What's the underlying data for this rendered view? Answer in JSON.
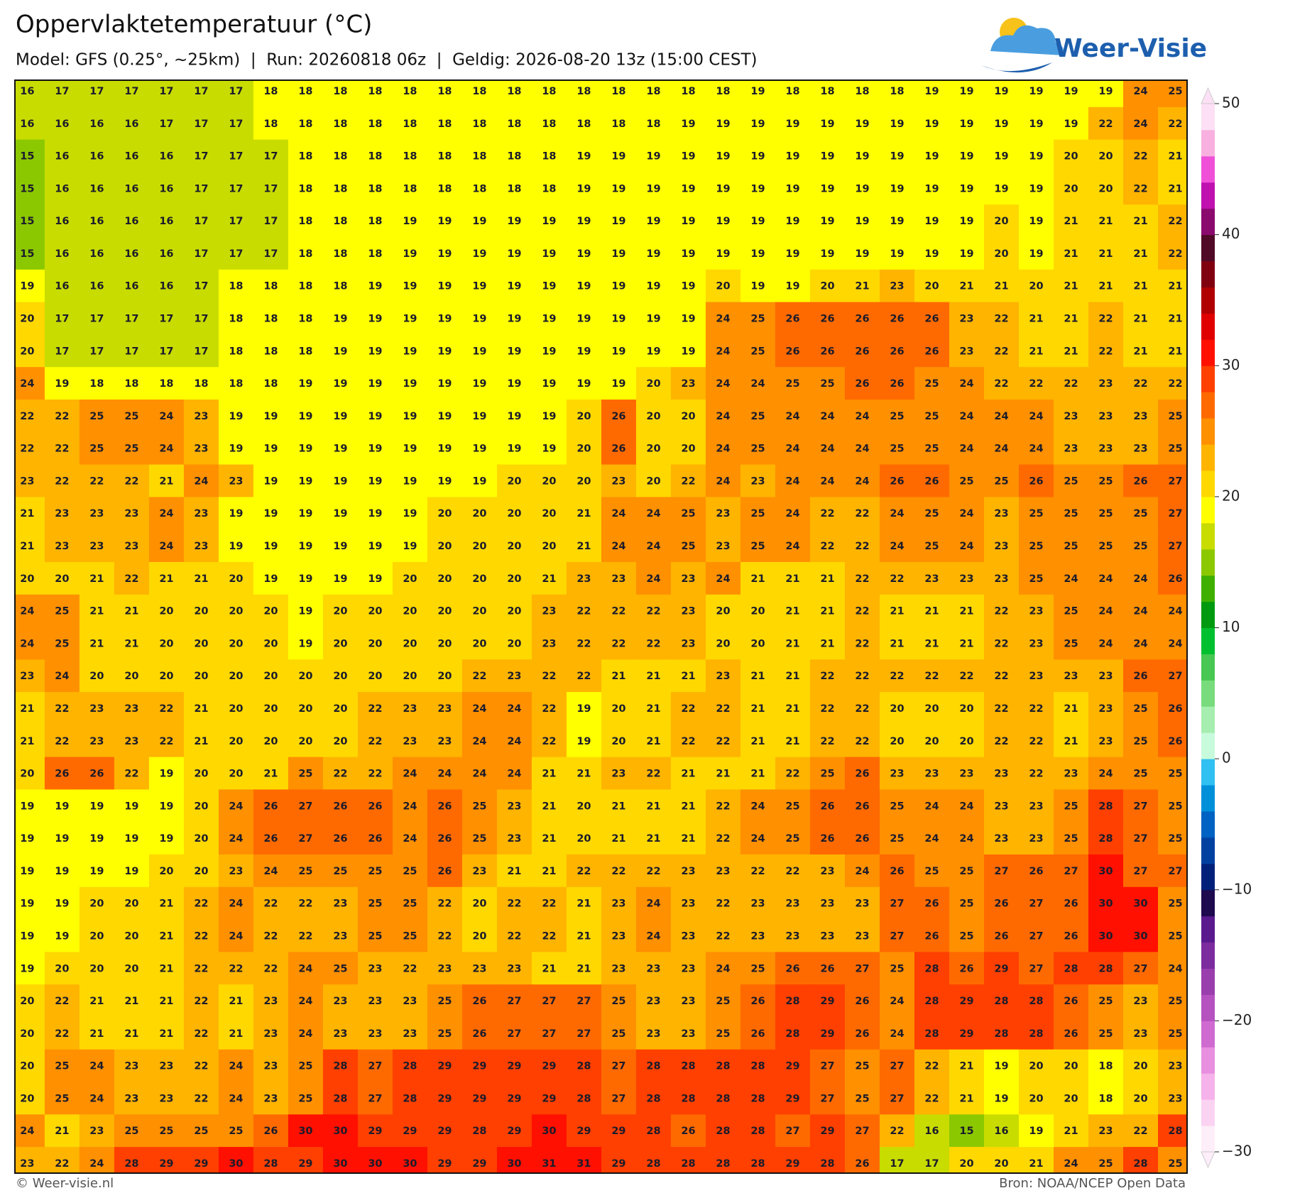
{
  "header": {
    "title": "Oppervlaktetemperatuur (°C)",
    "subtitle": "Model: GFS (0.25°, ~25km)  |  Run: 20260818 06z  |  Geldig: 2026-08-20 13z (15:00 CEST)",
    "logo": "Weer-Visie"
  },
  "grid": {
    "rows": [
      [
        16,
        17,
        17,
        17,
        17,
        17,
        17,
        18,
        18,
        18,
        18,
        18,
        18,
        18,
        18,
        18,
        18,
        18,
        18,
        18,
        18,
        19,
        18,
        18,
        18,
        18,
        19,
        19,
        19,
        19,
        19,
        19,
        24,
        25
      ],
      [
        16,
        16,
        16,
        16,
        17,
        17,
        17,
        18,
        18,
        18,
        18,
        18,
        18,
        18,
        18,
        18,
        18,
        18,
        18,
        19,
        19,
        19,
        19,
        19,
        19,
        19,
        19,
        19,
        19,
        19,
        19,
        22,
        24,
        22
      ],
      [
        15,
        16,
        16,
        16,
        16,
        17,
        17,
        17,
        18,
        18,
        18,
        18,
        18,
        18,
        18,
        18,
        19,
        19,
        19,
        19,
        19,
        19,
        19,
        19,
        19,
        19,
        19,
        19,
        19,
        19,
        20,
        20,
        22,
        21
      ],
      [
        15,
        16,
        16,
        16,
        16,
        17,
        17,
        17,
        18,
        18,
        18,
        18,
        18,
        18,
        18,
        18,
        19,
        19,
        19,
        19,
        19,
        19,
        19,
        19,
        19,
        19,
        19,
        19,
        19,
        19,
        20,
        20,
        22,
        21
      ],
      [
        15,
        16,
        16,
        16,
        16,
        17,
        17,
        17,
        18,
        18,
        18,
        19,
        19,
        19,
        19,
        19,
        19,
        19,
        19,
        19,
        19,
        19,
        19,
        19,
        19,
        19,
        19,
        19,
        20,
        19,
        21,
        21,
        21,
        22
      ],
      [
        15,
        16,
        16,
        16,
        16,
        17,
        17,
        17,
        18,
        18,
        18,
        19,
        19,
        19,
        19,
        19,
        19,
        19,
        19,
        19,
        19,
        19,
        19,
        19,
        19,
        19,
        19,
        19,
        20,
        19,
        21,
        21,
        21,
        22
      ],
      [
        19,
        16,
        16,
        16,
        16,
        17,
        18,
        18,
        18,
        18,
        19,
        19,
        19,
        19,
        19,
        19,
        19,
        19,
        19,
        19,
        20,
        19,
        19,
        20,
        21,
        23,
        20,
        21,
        21,
        20,
        21,
        21,
        21,
        21
      ],
      [
        20,
        17,
        17,
        17,
        17,
        17,
        18,
        18,
        18,
        19,
        19,
        19,
        19,
        19,
        19,
        19,
        19,
        19,
        19,
        19,
        24,
        25,
        26,
        26,
        26,
        26,
        26,
        23,
        22,
        21,
        21,
        22,
        21,
        21
      ],
      [
        20,
        17,
        17,
        17,
        17,
        17,
        18,
        18,
        18,
        19,
        19,
        19,
        19,
        19,
        19,
        19,
        19,
        19,
        19,
        19,
        24,
        25,
        26,
        26,
        26,
        26,
        26,
        23,
        22,
        21,
        21,
        22,
        21,
        21
      ],
      [
        24,
        19,
        18,
        18,
        18,
        18,
        18,
        18,
        19,
        19,
        19,
        19,
        19,
        19,
        19,
        19,
        19,
        19,
        20,
        23,
        24,
        24,
        25,
        25,
        26,
        26,
        25,
        24,
        22,
        22,
        22,
        23,
        22,
        22
      ],
      [
        22,
        22,
        25,
        25,
        24,
        23,
        19,
        19,
        19,
        19,
        19,
        19,
        19,
        19,
        19,
        19,
        20,
        26,
        20,
        20,
        24,
        25,
        24,
        24,
        24,
        25,
        25,
        24,
        24,
        24,
        23,
        23,
        23,
        25
      ],
      [
        22,
        22,
        25,
        25,
        24,
        23,
        19,
        19,
        19,
        19,
        19,
        19,
        19,
        19,
        19,
        19,
        20,
        26,
        20,
        20,
        24,
        25,
        24,
        24,
        24,
        25,
        25,
        24,
        24,
        24,
        23,
        23,
        23,
        25
      ],
      [
        23,
        22,
        22,
        22,
        21,
        24,
        23,
        19,
        19,
        19,
        19,
        19,
        19,
        19,
        20,
        20,
        20,
        23,
        20,
        22,
        24,
        23,
        24,
        24,
        24,
        26,
        26,
        25,
        25,
        26,
        25,
        25,
        26,
        27
      ],
      [
        21,
        23,
        23,
        23,
        24,
        23,
        19,
        19,
        19,
        19,
        19,
        19,
        20,
        20,
        20,
        20,
        21,
        24,
        24,
        25,
        23,
        25,
        24,
        22,
        22,
        24,
        25,
        24,
        23,
        25,
        25,
        25,
        25,
        27
      ],
      [
        21,
        23,
        23,
        23,
        24,
        23,
        19,
        19,
        19,
        19,
        19,
        19,
        20,
        20,
        20,
        20,
        21,
        24,
        24,
        25,
        23,
        25,
        24,
        22,
        22,
        24,
        25,
        24,
        23,
        25,
        25,
        25,
        25,
        27
      ],
      [
        20,
        20,
        21,
        22,
        21,
        21,
        20,
        19,
        19,
        19,
        19,
        20,
        20,
        20,
        20,
        21,
        23,
        23,
        24,
        23,
        24,
        21,
        21,
        21,
        22,
        22,
        23,
        23,
        23,
        25,
        24,
        24,
        24,
        26
      ],
      [
        24,
        25,
        21,
        21,
        20,
        20,
        20,
        20,
        19,
        20,
        20,
        20,
        20,
        20,
        20,
        23,
        22,
        22,
        22,
        23,
        20,
        20,
        21,
        21,
        22,
        21,
        21,
        21,
        22,
        23,
        25,
        24,
        24,
        24
      ],
      [
        24,
        25,
        21,
        21,
        20,
        20,
        20,
        20,
        19,
        20,
        20,
        20,
        20,
        20,
        20,
        23,
        22,
        22,
        22,
        23,
        20,
        20,
        21,
        21,
        22,
        21,
        21,
        21,
        22,
        23,
        25,
        24,
        24,
        24
      ],
      [
        23,
        24,
        20,
        20,
        20,
        20,
        20,
        20,
        20,
        20,
        20,
        20,
        20,
        22,
        23,
        22,
        22,
        21,
        21,
        21,
        23,
        21,
        21,
        22,
        22,
        22,
        22,
        22,
        22,
        23,
        23,
        23,
        26,
        27
      ],
      [
        21,
        22,
        23,
        23,
        22,
        21,
        20,
        20,
        20,
        20,
        22,
        23,
        23,
        24,
        24,
        22,
        19,
        20,
        21,
        22,
        22,
        21,
        21,
        22,
        22,
        20,
        20,
        20,
        22,
        22,
        21,
        23,
        25,
        26
      ],
      [
        21,
        22,
        23,
        23,
        22,
        21,
        20,
        20,
        20,
        20,
        22,
        23,
        23,
        24,
        24,
        22,
        19,
        20,
        21,
        22,
        22,
        21,
        21,
        22,
        22,
        20,
        20,
        20,
        22,
        22,
        21,
        23,
        25,
        26
      ],
      [
        20,
        26,
        26,
        22,
        19,
        20,
        20,
        21,
        25,
        22,
        22,
        24,
        24,
        24,
        24,
        21,
        21,
        23,
        22,
        21,
        21,
        21,
        22,
        25,
        26,
        23,
        23,
        23,
        23,
        22,
        23,
        24,
        25,
        25
      ],
      [
        19,
        19,
        19,
        19,
        19,
        20,
        24,
        26,
        27,
        26,
        26,
        24,
        26,
        25,
        23,
        21,
        20,
        21,
        21,
        21,
        22,
        24,
        25,
        26,
        26,
        25,
        24,
        24,
        23,
        23,
        25,
        28,
        27,
        25
      ],
      [
        19,
        19,
        19,
        19,
        19,
        20,
        24,
        26,
        27,
        26,
        26,
        24,
        26,
        25,
        23,
        21,
        20,
        21,
        21,
        21,
        22,
        24,
        25,
        26,
        26,
        25,
        24,
        24,
        23,
        23,
        25,
        28,
        27,
        25
      ],
      [
        19,
        19,
        19,
        19,
        20,
        20,
        23,
        24,
        25,
        25,
        25,
        25,
        26,
        23,
        21,
        21,
        22,
        22,
        22,
        23,
        23,
        22,
        22,
        23,
        24,
        26,
        25,
        25,
        27,
        26,
        27,
        30,
        27,
        27
      ],
      [
        19,
        19,
        20,
        20,
        21,
        22,
        24,
        22,
        22,
        23,
        25,
        25,
        22,
        20,
        22,
        22,
        21,
        23,
        24,
        23,
        22,
        23,
        23,
        23,
        23,
        27,
        26,
        25,
        26,
        27,
        26,
        30,
        30,
        25
      ],
      [
        19,
        19,
        20,
        20,
        21,
        22,
        24,
        22,
        22,
        23,
        25,
        25,
        22,
        20,
        22,
        22,
        21,
        23,
        24,
        23,
        22,
        23,
        23,
        23,
        23,
        27,
        26,
        25,
        26,
        27,
        26,
        30,
        30,
        25
      ],
      [
        19,
        20,
        20,
        20,
        21,
        22,
        22,
        22,
        24,
        25,
        23,
        22,
        23,
        23,
        23,
        21,
        21,
        23,
        23,
        23,
        24,
        25,
        26,
        26,
        27,
        25,
        28,
        26,
        29,
        27,
        28,
        28,
        27,
        24
      ],
      [
        20,
        22,
        21,
        21,
        21,
        22,
        21,
        23,
        24,
        23,
        23,
        23,
        25,
        26,
        27,
        27,
        27,
        25,
        23,
        23,
        25,
        26,
        28,
        29,
        26,
        24,
        28,
        29,
        28,
        28,
        26,
        25,
        23,
        25
      ],
      [
        20,
        22,
        21,
        21,
        21,
        22,
        21,
        23,
        24,
        23,
        23,
        23,
        25,
        26,
        27,
        27,
        27,
        25,
        23,
        23,
        25,
        26,
        28,
        29,
        26,
        24,
        28,
        29,
        28,
        28,
        26,
        25,
        23,
        25
      ],
      [
        20,
        25,
        24,
        23,
        23,
        22,
        24,
        23,
        25,
        28,
        27,
        28,
        29,
        29,
        29,
        29,
        28,
        27,
        28,
        28,
        28,
        28,
        29,
        27,
        25,
        27,
        22,
        21,
        19,
        20,
        20,
        18,
        20,
        23
      ],
      [
        20,
        25,
        24,
        23,
        23,
        22,
        24,
        23,
        25,
        28,
        27,
        28,
        29,
        29,
        29,
        29,
        28,
        27,
        28,
        28,
        28,
        28,
        29,
        27,
        25,
        27,
        22,
        21,
        19,
        20,
        20,
        18,
        20,
        23
      ],
      [
        24,
        21,
        23,
        25,
        25,
        25,
        25,
        26,
        30,
        30,
        29,
        29,
        29,
        28,
        29,
        30,
        29,
        29,
        28,
        26,
        28,
        28,
        27,
        29,
        27,
        22,
        16,
        15,
        16,
        19,
        21,
        23,
        22,
        28
      ],
      [
        23,
        22,
        24,
        28,
        29,
        29,
        30,
        28,
        29,
        30,
        30,
        30,
        29,
        29,
        30,
        31,
        31,
        29,
        28,
        28,
        28,
        28,
        29,
        28,
        26,
        17,
        17,
        20,
        20,
        21,
        24,
        25,
        28,
        25
      ]
    ]
  },
  "colorbar": {
    "lim": [
      -30,
      50
    ],
    "ticks": [
      {
        "value": -30,
        "label": "−30"
      },
      {
        "value": -20,
        "label": "−20"
      },
      {
        "value": -10,
        "label": "−10"
      },
      0,
      10,
      20,
      30,
      40,
      50
    ],
    "colors": [
      "#fdeefa",
      "#fbd3f2",
      "#f6b2ea",
      "#e88fe0",
      "#cf6bd0",
      "#b552c0",
      "#9a3eae",
      "#7c2c9e",
      "#5a1a8e",
      "#1e0a4e",
      "#00207a",
      "#0040a0",
      "#0062c2",
      "#0090da",
      "#30c0f2",
      "#c8fadc",
      "#a6eeb0",
      "#78dc7c",
      "#48c852",
      "#00c030",
      "#009a10",
      "#40b000",
      "#8cc800",
      "#c8dc00",
      "#ffff00",
      "#ffd800",
      "#ffb400",
      "#ff9000",
      "#ff6a00",
      "#ff4000",
      "#ff1000",
      "#e00000",
      "#b00000",
      "#800010",
      "#500a28",
      "#8a0a6e",
      "#c010b0",
      "#f050d8",
      "#f8b0e0",
      "#fde0f5"
    ]
  },
  "footer": {
    "left": "© Weer-visie.nl",
    "right": "Bron: NOAA/NCEP Open Data"
  }
}
